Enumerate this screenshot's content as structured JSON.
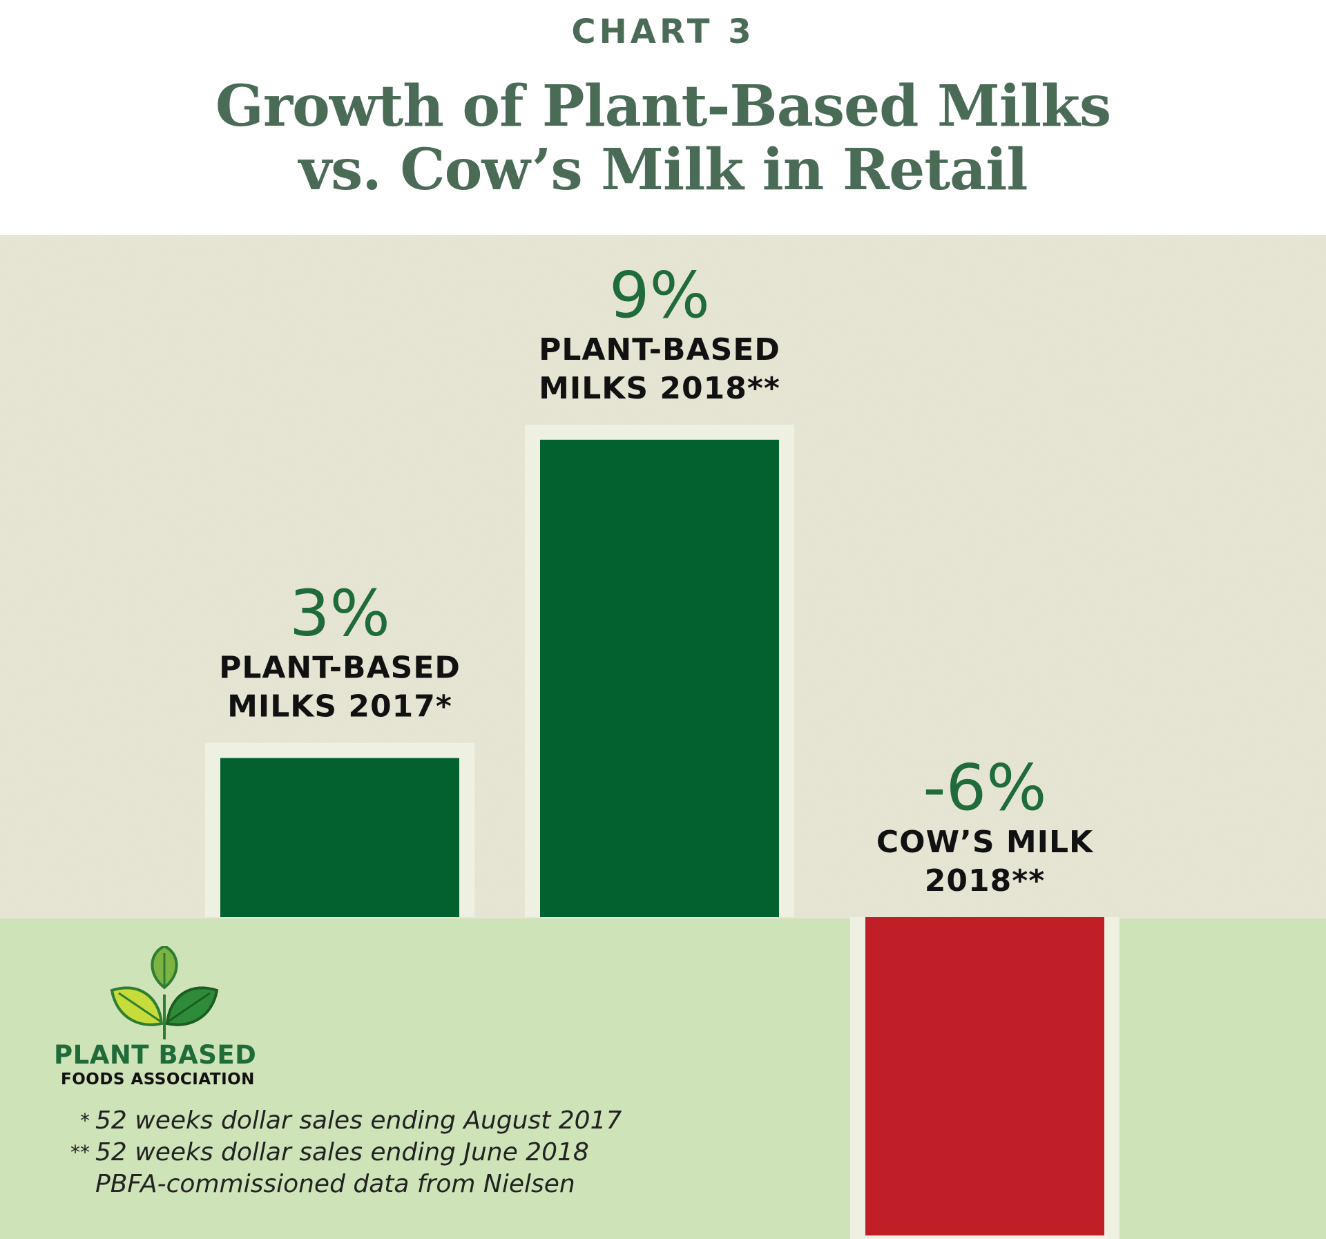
{
  "header": {
    "eyebrow": "CHART 3",
    "title_line1": "Growth of Plant-Based Milks",
    "title_line2": "vs. Cow’s Milk in Retail"
  },
  "colors": {
    "title": "#4a6b55",
    "positive_bar": "#02612f",
    "negative_bar": "#c01f27",
    "value_text": "#1f6b3a",
    "upper_background": "#e8e7d6",
    "lower_background": "#cfe3b9",
    "bar_frame": "#eef1e2"
  },
  "chart_data": {
    "type": "bar",
    "categories": [
      "PLANT-BASED MILKS 2017*",
      "PLANT-BASED MILKS 2018**",
      "COW’S MILK 2018**"
    ],
    "category_label_lines": [
      [
        "PLANT-BASED",
        "MILKS 2017*"
      ],
      [
        "PLANT-BASED",
        "MILKS 2018**"
      ],
      [
        "COW’S MILK",
        "2018**"
      ]
    ],
    "values": [
      3,
      9,
      -6
    ],
    "value_labels": [
      "3%",
      "9%",
      "-6%"
    ],
    "ylim": [
      -6,
      9
    ],
    "grid": false,
    "legend": "none"
  },
  "logo": {
    "name": "PLANT BASED",
    "sub": "FOODS ASSOCIATION",
    "icon": "three-leaves-icon"
  },
  "footnotes": [
    {
      "mark": "*",
      "text": "52 weeks dollar sales ending August 2017"
    },
    {
      "mark": "**",
      "text": "52 weeks dollar sales ending June 2018"
    },
    {
      "mark": "",
      "text": "PBFA-commissioned data from Nielsen"
    }
  ]
}
